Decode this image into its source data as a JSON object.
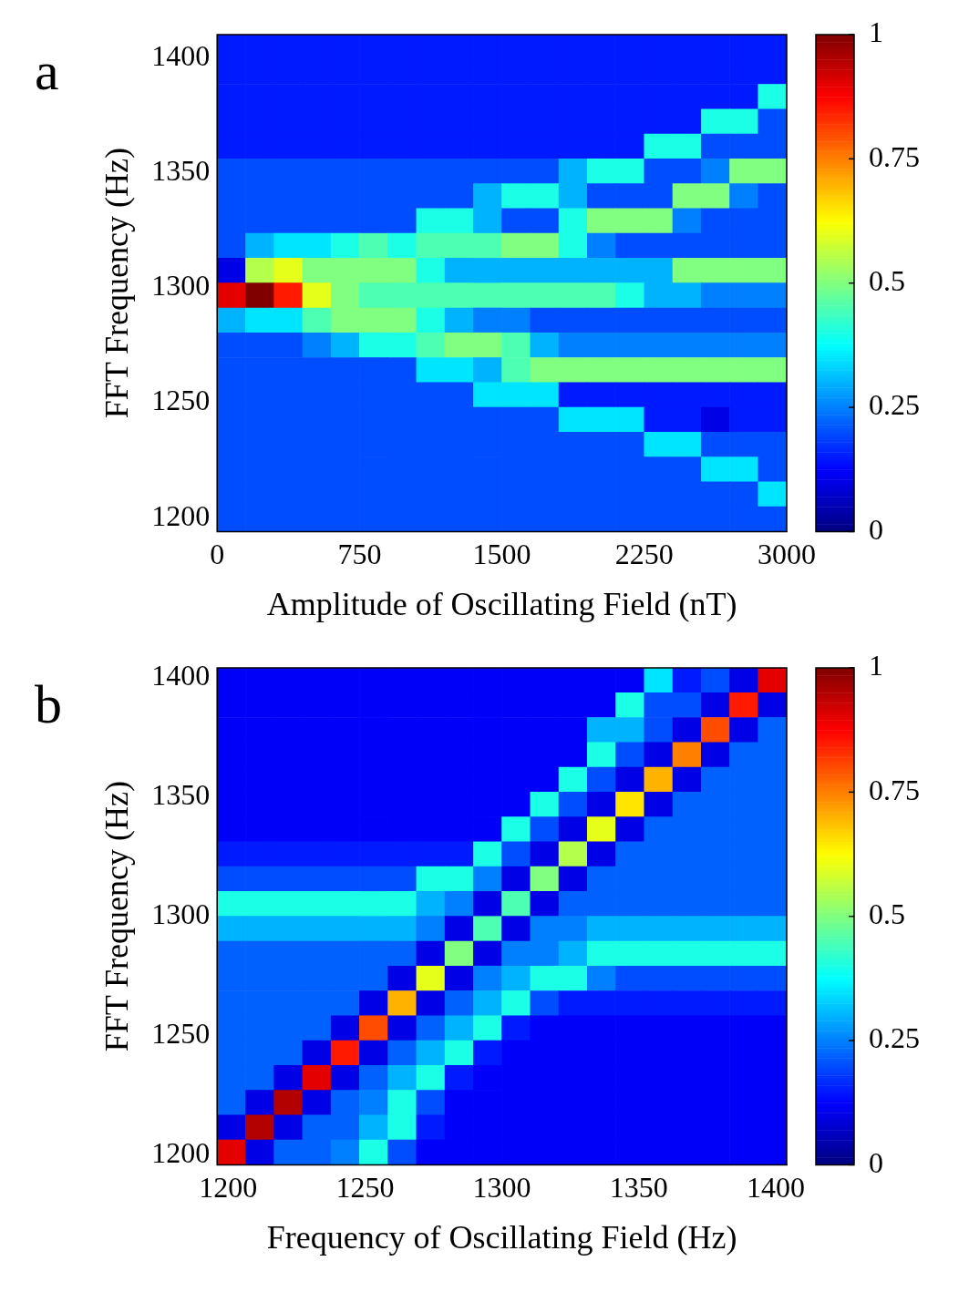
{
  "chart_data": [
    {
      "type": "heatmap",
      "annotations": [
        "a"
      ],
      "xlabel": "Amplitude of Oscillating Field (nT)",
      "ylabel": "FFT Frequency (Hz)",
      "xlim": [
        0,
        3000
      ],
      "xticks": [
        0,
        750,
        1500,
        2250,
        3000
      ],
      "ylim": [
        1194,
        1410
      ],
      "yticks": [
        1200,
        1250,
        1300,
        1350,
        1400
      ],
      "clim": [
        0,
        1
      ],
      "cticks": [
        0,
        0.25,
        0.5,
        0.75,
        1
      ],
      "x": [
        75,
        225,
        375,
        525,
        675,
        825,
        975,
        1125,
        1275,
        1425,
        1575,
        1725,
        1875,
        2025,
        2175,
        2325,
        2475,
        2625,
        2775,
        2925
      ],
      "y": [
        1404.6,
        1393.8,
        1383,
        1372.2,
        1361.4,
        1350.6,
        1339.8,
        1329,
        1318.2,
        1307.4,
        1296.6,
        1285.8,
        1275,
        1264.2,
        1253.4,
        1242.6,
        1231.8,
        1221,
        1210.2,
        1199.4
      ],
      "cells": [
        [
          0.15,
          0.15,
          0.15,
          0.15,
          0.15,
          0.15,
          0.15,
          0.15,
          0.15,
          0.15,
          0.15,
          0.15,
          0.15,
          0.15,
          0.15,
          0.15,
          0.15,
          0.15,
          0.15,
          0.15
        ],
        [
          0.15,
          0.15,
          0.15,
          0.15,
          0.15,
          0.15,
          0.15,
          0.15,
          0.15,
          0.15,
          0.15,
          0.15,
          0.15,
          0.15,
          0.15,
          0.15,
          0.15,
          0.15,
          0.15,
          0.15
        ],
        [
          0.15,
          0.15,
          0.15,
          0.15,
          0.15,
          0.15,
          0.15,
          0.15,
          0.15,
          0.15,
          0.15,
          0.15,
          0.15,
          0.15,
          0.15,
          0.15,
          0.15,
          0.15,
          0.15,
          0.4
        ],
        [
          0.15,
          0.15,
          0.15,
          0.15,
          0.15,
          0.15,
          0.15,
          0.15,
          0.15,
          0.15,
          0.15,
          0.15,
          0.15,
          0.15,
          0.15,
          0.15,
          0.15,
          0.4,
          0.4,
          0.2
        ],
        [
          0.15,
          0.15,
          0.15,
          0.15,
          0.15,
          0.15,
          0.15,
          0.15,
          0.15,
          0.15,
          0.15,
          0.15,
          0.15,
          0.15,
          0.15,
          0.4,
          0.4,
          0.2,
          0.2,
          0.2
        ],
        [
          0.2,
          0.2,
          0.2,
          0.2,
          0.2,
          0.2,
          0.2,
          0.2,
          0.2,
          0.2,
          0.2,
          0.2,
          0.3,
          0.4,
          0.4,
          0.2,
          0.2,
          0.25,
          0.5,
          0.5
        ],
        [
          0.2,
          0.2,
          0.2,
          0.2,
          0.2,
          0.2,
          0.2,
          0.2,
          0.2,
          0.3,
          0.4,
          0.4,
          0.3,
          0.2,
          0.2,
          0.2,
          0.5,
          0.5,
          0.25,
          0.2
        ],
        [
          0.2,
          0.2,
          0.2,
          0.2,
          0.2,
          0.2,
          0.2,
          0.4,
          0.4,
          0.3,
          0.2,
          0.2,
          0.4,
          0.5,
          0.5,
          0.5,
          0.25,
          0.2,
          0.2,
          0.2
        ],
        [
          0.2,
          0.3,
          0.35,
          0.35,
          0.4,
          0.45,
          0.4,
          0.45,
          0.45,
          0.45,
          0.5,
          0.5,
          0.4,
          0.25,
          0.2,
          0.2,
          0.2,
          0.2,
          0.2,
          0.2
        ],
        [
          0.1,
          0.55,
          0.6,
          0.5,
          0.5,
          0.5,
          0.5,
          0.4,
          0.3,
          0.3,
          0.3,
          0.3,
          0.3,
          0.3,
          0.3,
          0.3,
          0.5,
          0.5,
          0.5,
          0.5
        ],
        [
          0.9,
          1,
          0.85,
          0.6,
          0.5,
          0.45,
          0.45,
          0.45,
          0.45,
          0.45,
          0.45,
          0.45,
          0.45,
          0.45,
          0.4,
          0.3,
          0.3,
          0.25,
          0.25,
          0.25
        ],
        [
          0.3,
          0.35,
          0.35,
          0.45,
          0.5,
          0.5,
          0.5,
          0.4,
          0.3,
          0.25,
          0.25,
          0.2,
          0.2,
          0.2,
          0.2,
          0.2,
          0.2,
          0.2,
          0.2,
          0.2
        ],
        [
          0.2,
          0.2,
          0.2,
          0.25,
          0.3,
          0.4,
          0.4,
          0.45,
          0.5,
          0.5,
          0.45,
          0.3,
          0.25,
          0.25,
          0.25,
          0.25,
          0.25,
          0.25,
          0.25,
          0.25
        ],
        [
          0.2,
          0.2,
          0.2,
          0.2,
          0.2,
          0.2,
          0.2,
          0.35,
          0.35,
          0.3,
          0.45,
          0.5,
          0.5,
          0.5,
          0.5,
          0.5,
          0.5,
          0.5,
          0.5,
          0.5
        ],
        [
          0.2,
          0.2,
          0.2,
          0.2,
          0.2,
          0.2,
          0.2,
          0.2,
          0.2,
          0.35,
          0.35,
          0.35,
          0.15,
          0.15,
          0.15,
          0.15,
          0.15,
          0.15,
          0.15,
          0.15
        ],
        [
          0.2,
          0.2,
          0.2,
          0.2,
          0.2,
          0.2,
          0.2,
          0.2,
          0.2,
          0.2,
          0.2,
          0.2,
          0.35,
          0.35,
          0.35,
          0.15,
          0.15,
          0.1,
          0.15,
          0.15
        ],
        [
          0.2,
          0.2,
          0.2,
          0.2,
          0.2,
          0.2,
          0.2,
          0.2,
          0.2,
          0.2,
          0.2,
          0.2,
          0.2,
          0.2,
          0.2,
          0.35,
          0.35,
          0.2,
          0.2,
          0.2
        ],
        [
          0.2,
          0.2,
          0.2,
          0.2,
          0.2,
          0.2,
          0.2,
          0.2,
          0.2,
          0.2,
          0.2,
          0.2,
          0.2,
          0.2,
          0.2,
          0.2,
          0.2,
          0.35,
          0.35,
          0.2
        ],
        [
          0.2,
          0.2,
          0.2,
          0.2,
          0.2,
          0.2,
          0.2,
          0.2,
          0.2,
          0.2,
          0.2,
          0.2,
          0.2,
          0.2,
          0.2,
          0.2,
          0.2,
          0.2,
          0.2,
          0.35
        ],
        [
          0.2,
          0.2,
          0.2,
          0.2,
          0.2,
          0.2,
          0.2,
          0.2,
          0.2,
          0.2,
          0.2,
          0.2,
          0.2,
          0.2,
          0.2,
          0.2,
          0.2,
          0.2,
          0.2,
          0.2
        ]
      ]
    },
    {
      "type": "heatmap",
      "annotations": [
        "b"
      ],
      "xlabel": "Frequency of Oscillating Field (Hz)",
      "ylabel": "FFT Frequency (Hz)",
      "xlim": [
        1196,
        1404
      ],
      "xticks": [
        1200,
        1250,
        1300,
        1350,
        1400
      ],
      "ylim": [
        1196,
        1404
      ],
      "yticks": [
        1200,
        1250,
        1300,
        1350,
        1400
      ],
      "clim": [
        0,
        1
      ],
      "cticks": [
        0,
        0.25,
        0.5,
        0.75,
        1
      ],
      "x": [
        1201.2,
        1211.6,
        1222,
        1232.4,
        1242.8,
        1253.2,
        1263.6,
        1274,
        1284.4,
        1294.8,
        1305.2,
        1315.6,
        1326,
        1336.4,
        1346.8,
        1357.2,
        1367.6,
        1378,
        1388.4,
        1398.8
      ],
      "y": [
        1398.8,
        1388.4,
        1378,
        1367.6,
        1357.2,
        1346.8,
        1336.4,
        1326,
        1315.6,
        1305.2,
        1294.8,
        1284.4,
        1274,
        1263.6,
        1253.2,
        1242.8,
        1232.4,
        1222,
        1211.6,
        1201.2
      ],
      "cells": [
        [
          0.12,
          0.12,
          0.12,
          0.12,
          0.12,
          0.12,
          0.12,
          0.12,
          0.12,
          0.12,
          0.12,
          0.12,
          0.12,
          0.12,
          0.12,
          0.35,
          0.15,
          0.2,
          0.1,
          0.9
        ],
        [
          0.12,
          0.12,
          0.12,
          0.12,
          0.12,
          0.12,
          0.12,
          0.12,
          0.12,
          0.12,
          0.12,
          0.12,
          0.12,
          0.12,
          0.4,
          0.2,
          0.2,
          0.1,
          0.85,
          0.1
        ],
        [
          0.12,
          0.12,
          0.12,
          0.12,
          0.12,
          0.12,
          0.12,
          0.12,
          0.12,
          0.12,
          0.12,
          0.12,
          0.12,
          0.3,
          0.3,
          0.2,
          0.1,
          0.8,
          0.1,
          0.22
        ],
        [
          0.12,
          0.12,
          0.12,
          0.12,
          0.12,
          0.12,
          0.12,
          0.12,
          0.12,
          0.12,
          0.12,
          0.12,
          0.12,
          0.4,
          0.2,
          0.1,
          0.75,
          0.1,
          0.22,
          0.22
        ],
        [
          0.12,
          0.12,
          0.12,
          0.12,
          0.12,
          0.12,
          0.12,
          0.12,
          0.12,
          0.12,
          0.12,
          0.12,
          0.4,
          0.2,
          0.1,
          0.7,
          0.1,
          0.22,
          0.22,
          0.22
        ],
        [
          0.12,
          0.12,
          0.12,
          0.12,
          0.12,
          0.12,
          0.12,
          0.12,
          0.12,
          0.12,
          0.12,
          0.4,
          0.2,
          0.1,
          0.65,
          0.1,
          0.22,
          0.22,
          0.22,
          0.22
        ],
        [
          0.12,
          0.12,
          0.12,
          0.12,
          0.12,
          0.12,
          0.12,
          0.12,
          0.12,
          0.12,
          0.4,
          0.2,
          0.1,
          0.6,
          0.1,
          0.22,
          0.22,
          0.22,
          0.22,
          0.22
        ],
        [
          0.15,
          0.15,
          0.15,
          0.15,
          0.15,
          0.15,
          0.15,
          0.15,
          0.15,
          0.4,
          0.2,
          0.1,
          0.55,
          0.1,
          0.22,
          0.22,
          0.22,
          0.22,
          0.22,
          0.22
        ],
        [
          0.2,
          0.2,
          0.2,
          0.2,
          0.2,
          0.2,
          0.2,
          0.4,
          0.4,
          0.25,
          0.1,
          0.5,
          0.1,
          0.22,
          0.22,
          0.22,
          0.22,
          0.22,
          0.22,
          0.22
        ],
        [
          0.4,
          0.4,
          0.4,
          0.4,
          0.4,
          0.4,
          0.4,
          0.3,
          0.25,
          0.1,
          0.45,
          0.1,
          0.22,
          0.22,
          0.22,
          0.22,
          0.22,
          0.22,
          0.22,
          0.22
        ],
        [
          0.3,
          0.3,
          0.3,
          0.3,
          0.3,
          0.3,
          0.3,
          0.25,
          0.1,
          0.45,
          0.1,
          0.25,
          0.25,
          0.3,
          0.3,
          0.3,
          0.3,
          0.3,
          0.3,
          0.3
        ],
        [
          0.22,
          0.22,
          0.22,
          0.22,
          0.22,
          0.22,
          0.22,
          0.1,
          0.5,
          0.1,
          0.25,
          0.25,
          0.3,
          0.4,
          0.4,
          0.4,
          0.4,
          0.4,
          0.4,
          0.4
        ],
        [
          0.22,
          0.22,
          0.22,
          0.22,
          0.22,
          0.22,
          0.1,
          0.6,
          0.1,
          0.25,
          0.3,
          0.4,
          0.4,
          0.25,
          0.2,
          0.2,
          0.2,
          0.2,
          0.2,
          0.2
        ],
        [
          0.22,
          0.22,
          0.22,
          0.22,
          0.22,
          0.1,
          0.7,
          0.1,
          0.22,
          0.3,
          0.4,
          0.2,
          0.15,
          0.15,
          0.15,
          0.15,
          0.15,
          0.15,
          0.15,
          0.15
        ],
        [
          0.22,
          0.22,
          0.22,
          0.22,
          0.1,
          0.8,
          0.1,
          0.22,
          0.3,
          0.4,
          0.15,
          0.12,
          0.12,
          0.12,
          0.12,
          0.12,
          0.12,
          0.12,
          0.12,
          0.12
        ],
        [
          0.22,
          0.22,
          0.22,
          0.1,
          0.85,
          0.1,
          0.22,
          0.3,
          0.4,
          0.15,
          0.12,
          0.12,
          0.12,
          0.12,
          0.12,
          0.12,
          0.12,
          0.12,
          0.12,
          0.12
        ],
        [
          0.22,
          0.22,
          0.1,
          0.9,
          0.1,
          0.22,
          0.3,
          0.4,
          0.15,
          0.12,
          0.12,
          0.12,
          0.12,
          0.12,
          0.12,
          0.12,
          0.12,
          0.12,
          0.12,
          0.12
        ],
        [
          0.22,
          0.1,
          0.95,
          0.1,
          0.22,
          0.25,
          0.4,
          0.2,
          0.12,
          0.12,
          0.12,
          0.12,
          0.12,
          0.12,
          0.12,
          0.12,
          0.12,
          0.12,
          0.12,
          0.12
        ],
        [
          0.1,
          0.95,
          0.1,
          0.22,
          0.22,
          0.3,
          0.4,
          0.15,
          0.12,
          0.12,
          0.12,
          0.12,
          0.12,
          0.12,
          0.12,
          0.12,
          0.12,
          0.12,
          0.12,
          0.12
        ],
        [
          0.9,
          0.1,
          0.22,
          0.22,
          0.25,
          0.4,
          0.2,
          0.12,
          0.12,
          0.12,
          0.12,
          0.12,
          0.12,
          0.12,
          0.12,
          0.12,
          0.12,
          0.12,
          0.12,
          0.12
        ]
      ]
    }
  ]
}
